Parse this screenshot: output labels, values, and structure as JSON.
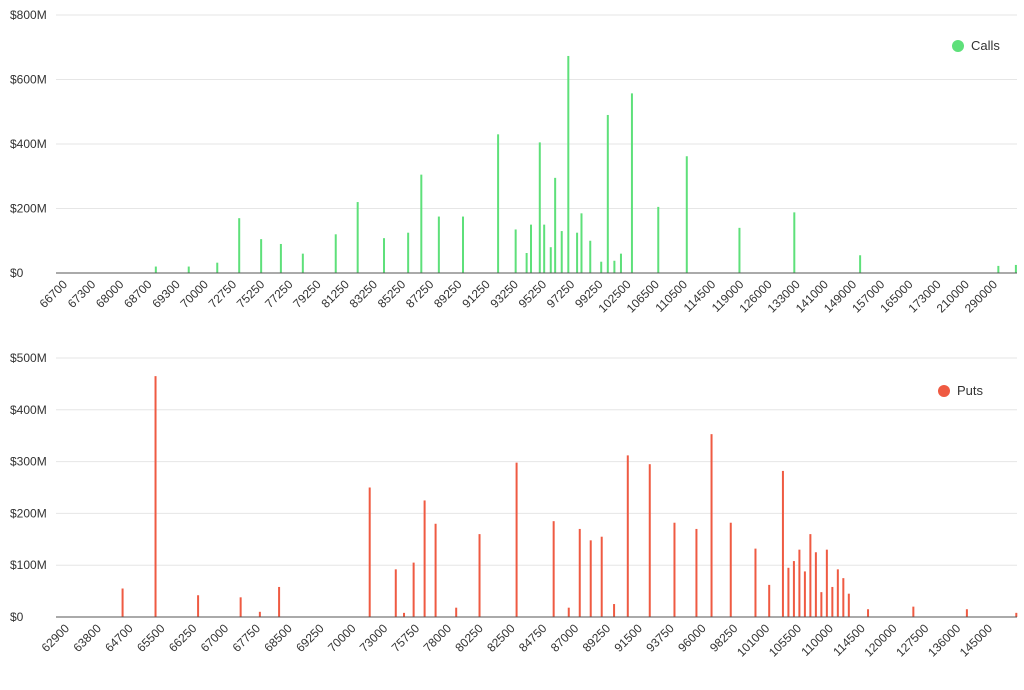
{
  "chart_data": [
    {
      "type": "bar",
      "title": "",
      "xlabel": "",
      "ylabel": "",
      "ylim": [
        0,
        800
      ],
      "yticks": [
        "$0",
        "$200M",
        "$400M",
        "$600M",
        "$800M"
      ],
      "grid": true,
      "legend": "top-right",
      "tick_labels": [
        "66700",
        "67300",
        "68000",
        "68700",
        "69300",
        "70000",
        "72750",
        "75250",
        "77250",
        "79250",
        "81250",
        "83250",
        "85250",
        "87250",
        "89250",
        "91250",
        "93250",
        "95250",
        "97250",
        "99250",
        "102500",
        "106500",
        "110500",
        "114500",
        "119000",
        "126000",
        "133000",
        "141000",
        "149000",
        "157000",
        "165000",
        "173000",
        "210000",
        "290000"
      ],
      "series": [
        {
          "name": "Calls",
          "color": "#5ee07a",
          "values": [
            0,
            0,
            0,
            0,
            0,
            0,
            0,
            0,
            0,
            0,
            0,
            0,
            0,
            0,
            0,
            0,
            0,
            0,
            0,
            0,
            0,
            0,
            0,
            0,
            0,
            0,
            0,
            0,
            0,
            0,
            0,
            0,
            0,
            0,
            0,
            0,
            0,
            0,
            0,
            0,
            0,
            0,
            0,
            0,
            0,
            20,
            0,
            0,
            0,
            0,
            0,
            0,
            0,
            0,
            0,
            0,
            0,
            0,
            0,
            0,
            20,
            0,
            0,
            0,
            0,
            0,
            0,
            0,
            0,
            0,
            0,
            0,
            0,
            32,
            0,
            0,
            0,
            0,
            0,
            0,
            0,
            0,
            0,
            170,
            0,
            0,
            0,
            0,
            0,
            0,
            0,
            0,
            0,
            105,
            0,
            0,
            0,
            0,
            0,
            0,
            0,
            0,
            90,
            0,
            0,
            0,
            0,
            0,
            0,
            0,
            0,
            0,
            60,
            0,
            0,
            0,
            0,
            0,
            0,
            0,
            0,
            0,
            0,
            0,
            0,
            0,
            0,
            120,
            0,
            0,
            0,
            0,
            0,
            0,
            0,
            0,
            0,
            220,
            0,
            0,
            0,
            0,
            0,
            0,
            0,
            0,
            0,
            0,
            0,
            108,
            0,
            0,
            0,
            0,
            0,
            0,
            0,
            0,
            0,
            0,
            125,
            0,
            0,
            0,
            0,
            0,
            305,
            0,
            0,
            0,
            0,
            0,
            0,
            0,
            175,
            0,
            0,
            0,
            0,
            0,
            0,
            0,
            0,
            0,
            0,
            175,
            0,
            0,
            0,
            0,
            0,
            0,
            0,
            0,
            0,
            0,
            0,
            0,
            0,
            0,
            0,
            430,
            0,
            0,
            0,
            0,
            0,
            0,
            0,
            135,
            0,
            0,
            0,
            0,
            62,
            0,
            150,
            0,
            0,
            0,
            405,
            0,
            150,
            0,
            0,
            80,
            0,
            295,
            0,
            0,
            130,
            0,
            0,
            673,
            0,
            0,
            0,
            125,
            0,
            185,
            0,
            0,
            0,
            100,
            0,
            0,
            0,
            0,
            35,
            0,
            0,
            490,
            0,
            0,
            38,
            0,
            0,
            60,
            0,
            0,
            0,
            0,
            557,
            0,
            0,
            0,
            0,
            0,
            0,
            0,
            0,
            0,
            0,
            0,
            205,
            0,
            0,
            0,
            0,
            0,
            0,
            0,
            0,
            0,
            0,
            0,
            0,
            362,
            0,
            0,
            0,
            0,
            0,
            0,
            0,
            0,
            0,
            0,
            0,
            0,
            0,
            0,
            0,
            0,
            0,
            0,
            0,
            0,
            0,
            0,
            0,
            140,
            0,
            0,
            0,
            0,
            0,
            0,
            0,
            0,
            0,
            0,
            0,
            0,
            0,
            0,
            0,
            0,
            0,
            0,
            0,
            0,
            0,
            0,
            0,
            0,
            188,
            0,
            0,
            0,
            0,
            0,
            0,
            0,
            0,
            0,
            0,
            0,
            0,
            0,
            0,
            0,
            0,
            0,
            0,
            0,
            0,
            0,
            0,
            0,
            0,
            0,
            0,
            0,
            0,
            0,
            55,
            0,
            0,
            0,
            0,
            0,
            0,
            0,
            0,
            0,
            0,
            0,
            0,
            0,
            0,
            0,
            0,
            0,
            0,
            0,
            0,
            0,
            0,
            0,
            0,
            0,
            0,
            0,
            0,
            0,
            0,
            0,
            0,
            0,
            0,
            0,
            0,
            0,
            0,
            0,
            0,
            0,
            0,
            0,
            0,
            0,
            0,
            0,
            0,
            0,
            0,
            0,
            0,
            0,
            0,
            0,
            0,
            0,
            0,
            0,
            0,
            0,
            0,
            22,
            0,
            0,
            0,
            0,
            0,
            0,
            0,
            25
          ]
        }
      ]
    },
    {
      "type": "bar",
      "title": "",
      "xlabel": "",
      "ylabel": "",
      "ylim": [
        0,
        500
      ],
      "yticks": [
        "$0",
        "$100M",
        "$200M",
        "$300M",
        "$400M",
        "$500M"
      ],
      "grid": true,
      "legend": "top-right",
      "tick_labels": [
        "62900",
        "63800",
        "64700",
        "65500",
        "66250",
        "67000",
        "67750",
        "68500",
        "69250",
        "70000",
        "73000",
        "75750",
        "78000",
        "80250",
        "82500",
        "84750",
        "87000",
        "89250",
        "91500",
        "93750",
        "96000",
        "98250",
        "101000",
        "105500",
        "110000",
        "114500",
        "120000",
        "127500",
        "136000",
        "145000"
      ],
      "series": [
        {
          "name": "Puts",
          "color": "#ef5a42",
          "values": [
            0,
            0,
            0,
            0,
            0,
            0,
            0,
            0,
            0,
            0,
            0,
            0,
            0,
            0,
            0,
            0,
            0,
            0,
            0,
            0,
            0,
            0,
            0,
            0,
            0,
            0,
            0,
            0,
            0,
            0,
            0,
            0,
            0,
            0,
            0,
            0,
            0,
            0,
            0,
            0,
            0,
            0,
            0,
            0,
            0,
            0,
            0,
            0,
            55,
            0,
            0,
            0,
            0,
            0,
            0,
            0,
            0,
            0,
            0,
            0,
            0,
            0,
            0,
            0,
            0,
            0,
            0,
            0,
            0,
            0,
            0,
            0,
            465,
            0,
            0,
            0,
            0,
            0,
            0,
            0,
            0,
            0,
            0,
            0,
            0,
            0,
            0,
            0,
            0,
            0,
            0,
            0,
            0,
            0,
            0,
            0,
            0,
            0,
            0,
            0,
            0,
            0,
            0,
            42,
            0,
            0,
            0,
            0,
            0,
            0,
            0,
            0,
            0,
            0,
            0,
            0,
            0,
            0,
            0,
            0,
            0,
            0,
            0,
            0,
            0,
            0,
            0,
            0,
            0,
            0,
            0,
            0,
            0,
            0,
            38,
            0,
            0,
            0,
            0,
            0,
            0,
            0,
            0,
            0,
            0,
            0,
            0,
            0,
            10,
            0,
            0,
            0,
            0,
            0,
            0,
            0,
            0,
            0,
            0,
            0,
            0,
            0,
            58,
            0,
            0,
            0,
            0,
            0,
            0,
            0,
            0,
            0,
            0,
            0,
            0,
            0,
            0,
            0,
            0,
            0,
            0,
            0,
            0,
            0,
            0,
            0,
            0,
            0,
            0,
            0,
            0,
            0,
            0,
            0,
            0,
            0,
            0,
            0,
            0,
            0,
            0,
            0,
            0,
            0,
            0,
            0,
            0,
            0,
            0,
            0,
            0,
            0,
            0,
            0,
            0,
            0,
            0,
            0,
            0,
            0,
            0,
            0,
            0,
            0,
            0,
            0,
            0,
            0,
            250,
            0,
            0,
            0,
            0,
            0,
            0,
            0,
            0,
            0,
            0,
            0,
            0,
            0,
            0,
            0,
            0,
            0,
            0,
            92,
            0,
            0,
            0,
            0,
            0,
            8,
            0,
            0,
            0,
            0,
            0,
            0,
            105,
            0,
            0,
            0,
            0,
            0,
            0,
            0,
            225,
            0,
            0,
            0,
            0,
            0,
            0,
            0,
            180,
            0,
            0,
            0,
            0,
            0,
            0,
            0,
            0,
            0,
            0,
            0,
            0,
            0,
            0,
            18,
            0,
            0,
            0,
            0,
            0,
            0,
            0,
            0,
            0,
            0,
            0,
            0,
            0,
            0,
            0,
            0,
            160,
            0,
            0,
            0,
            0,
            0,
            0,
            0,
            0,
            0,
            0,
            0,
            0,
            0,
            0,
            0,
            0,
            0,
            0,
            0,
            0,
            0,
            0,
            0,
            0,
            0,
            0,
            298,
            0,
            0,
            0,
            0,
            0,
            0,
            0,
            0,
            0,
            0,
            0,
            0,
            0,
            0,
            0,
            0,
            0,
            0,
            0,
            0,
            0,
            0,
            0,
            0,
            0,
            0,
            185,
            0,
            0,
            0,
            0,
            0,
            0,
            0,
            0,
            0,
            0,
            18,
            0,
            0,
            0,
            0,
            0,
            0,
            0,
            170,
            0,
            0,
            0,
            0,
            0,
            0,
            0,
            148,
            0,
            0,
            0,
            0,
            0,
            0,
            0,
            155,
            0,
            0,
            0,
            0,
            0,
            0,
            0,
            0,
            25,
            0,
            0,
            0,
            0,
            0,
            0,
            0,
            0,
            0,
            312,
            0,
            0,
            0,
            0,
            0,
            0,
            0,
            0,
            0,
            0,
            0,
            0,
            0,
            0,
            0,
            295,
            0,
            0,
            0,
            0,
            0,
            0,
            0,
            0,
            0,
            0,
            0,
            0,
            0,
            0,
            0,
            0,
            0,
            182,
            0,
            0,
            0,
            0,
            0,
            0,
            0,
            0,
            0,
            0,
            0,
            0,
            0,
            0,
            0,
            170,
            0,
            0,
            0,
            0,
            0,
            0,
            0,
            0,
            0,
            0,
            353,
            0,
            0,
            0,
            0,
            0,
            0,
            0,
            0,
            0,
            0,
            0,
            0,
            0,
            182,
            0,
            0,
            0,
            0,
            0,
            0,
            0,
            0,
            0,
            0,
            0,
            0,
            0,
            0,
            0,
            0,
            0,
            132,
            0,
            0,
            0,
            0,
            0,
            0,
            0,
            0,
            0,
            62,
            0,
            0,
            0,
            0,
            0,
            0,
            0,
            0,
            0,
            282,
            0,
            0,
            0,
            95,
            0,
            0,
            0,
            108,
            0,
            0,
            0,
            130,
            0,
            0,
            0,
            88,
            0,
            0,
            0,
            160,
            0,
            0,
            0,
            125,
            0,
            0,
            0,
            48,
            0,
            0,
            0,
            130,
            0,
            0,
            0,
            58,
            0,
            0,
            0,
            92,
            0,
            0,
            0,
            75,
            0,
            0,
            0,
            45,
            0,
            0,
            0,
            0,
            0,
            0,
            0,
            0,
            0,
            0,
            0,
            0,
            0,
            15,
            0,
            0,
            0,
            0,
            0,
            0,
            0,
            0,
            0,
            0,
            0,
            0,
            0,
            0,
            0,
            0,
            0,
            0,
            0,
            0,
            0,
            0,
            0,
            0,
            0,
            0,
            0,
            0,
            0,
            0,
            0,
            0,
            20,
            0,
            0,
            0,
            0,
            0,
            0,
            0,
            0,
            0,
            0,
            0,
            0,
            0,
            0,
            0,
            0,
            0,
            0,
            0,
            0,
            0,
            0,
            0,
            0,
            0,
            0,
            0,
            0,
            0,
            0,
            0,
            0,
            0,
            0,
            0,
            0,
            0,
            0,
            15,
            0,
            0,
            0,
            0,
            0,
            0,
            0,
            0,
            0,
            0,
            0,
            0,
            0,
            0,
            0,
            0,
            0,
            0,
            0,
            0,
            0,
            0,
            0,
            0,
            0,
            0,
            0,
            0,
            0,
            0,
            0,
            0,
            0,
            0,
            0,
            8
          ]
        }
      ]
    }
  ]
}
